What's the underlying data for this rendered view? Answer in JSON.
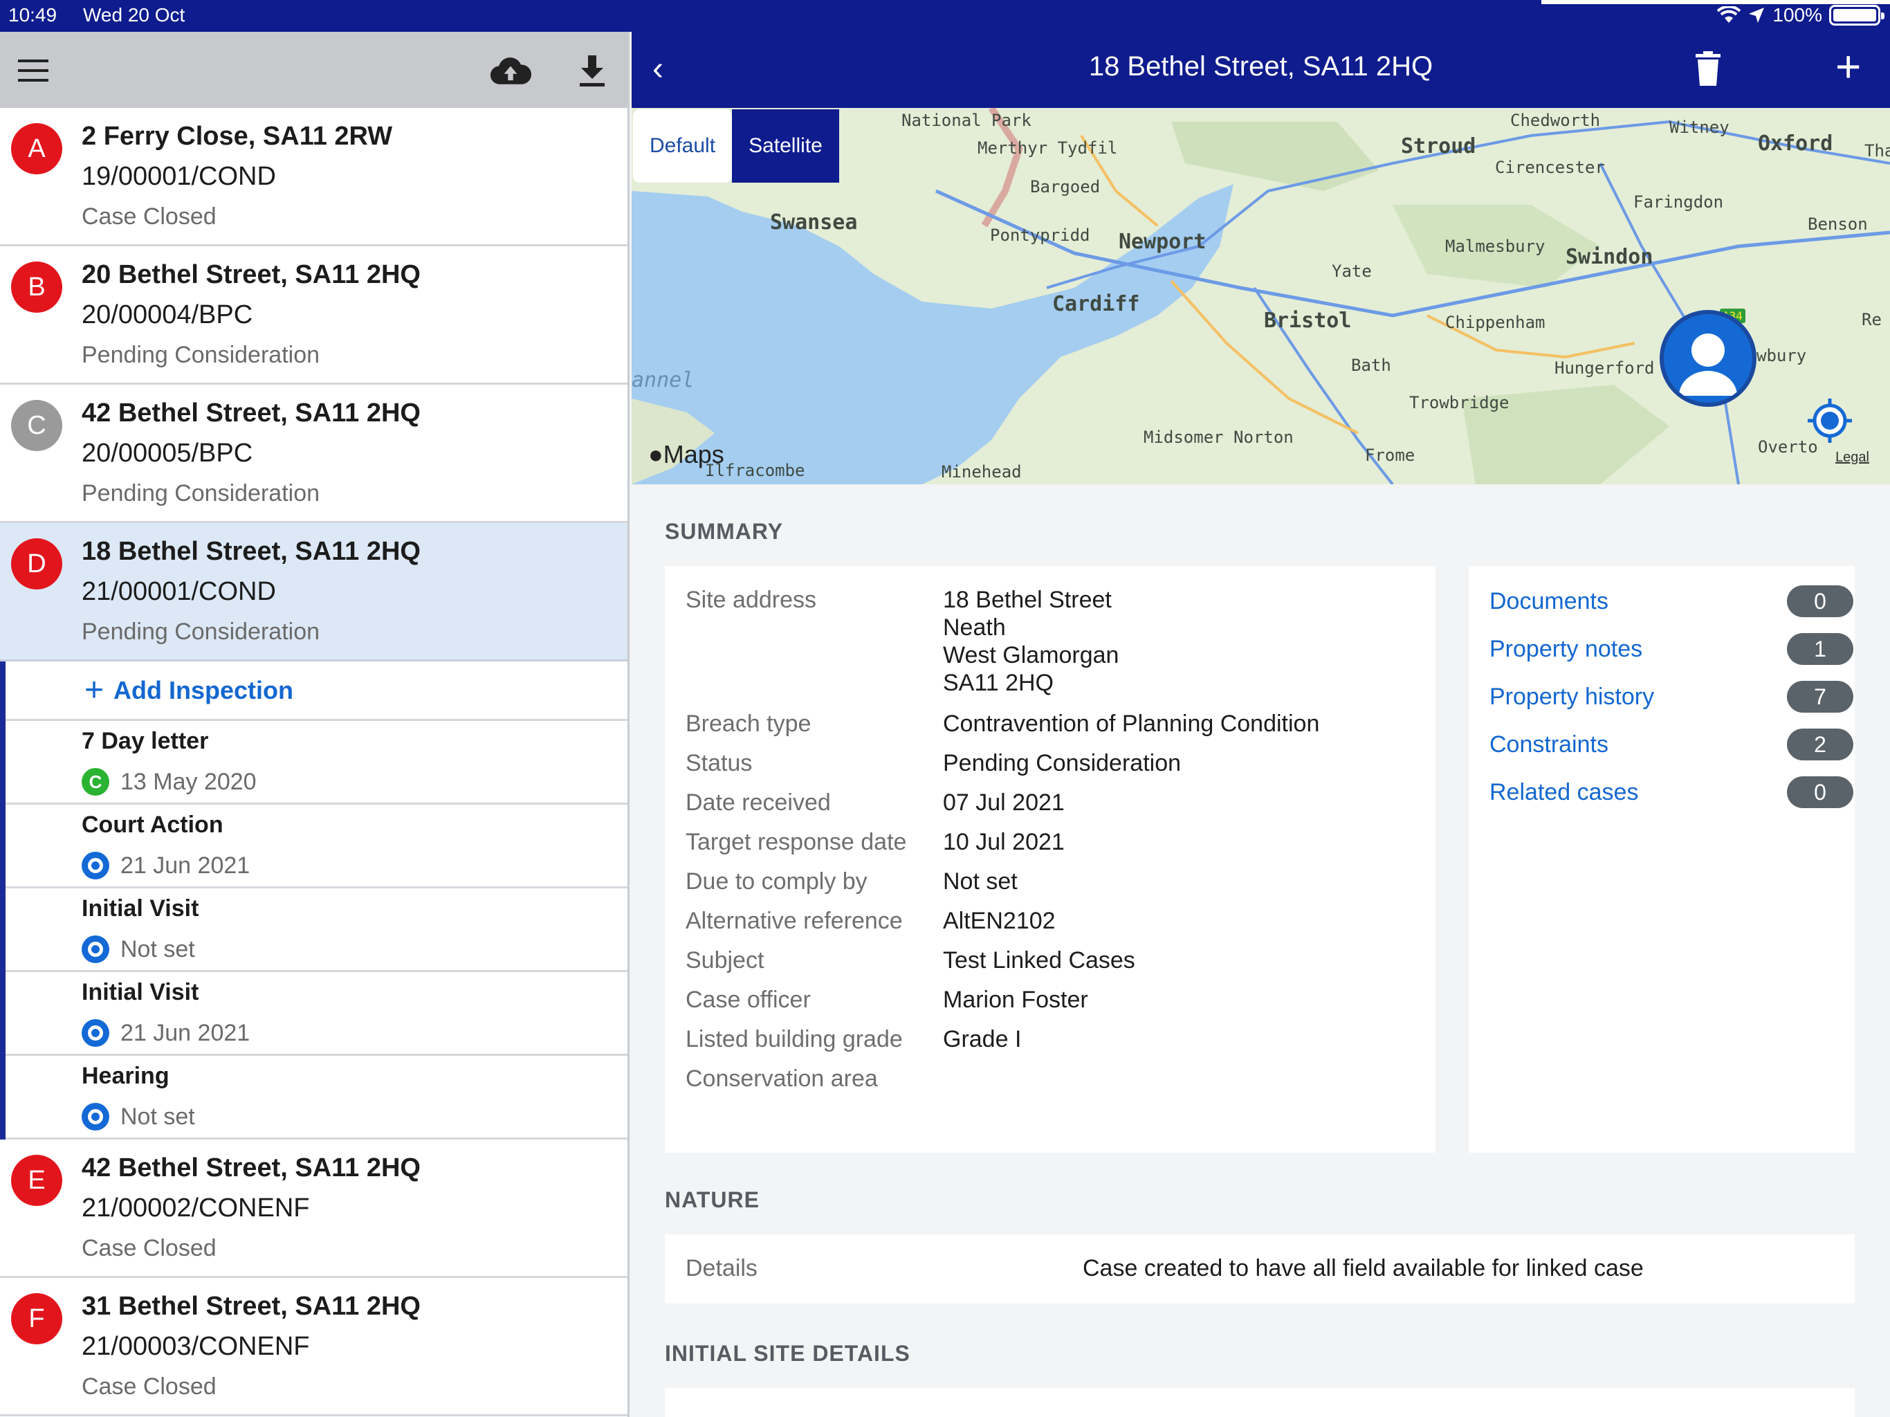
{
  "statusbar": {
    "time": "10:49",
    "date": "Wed 20 Oct",
    "battery": "100%"
  },
  "colors": {
    "nav_bg": "#0f1c8e",
    "link": "#1367d0",
    "badge_red": "#e3151c",
    "badge_grey": "#9a9a9a",
    "selected_row": "#dce8f6"
  },
  "left_toolbar": {
    "menu_icon": "menu-icon",
    "upload_icon": "cloud-upload-icon",
    "download_icon": "download-icon"
  },
  "cases": [
    {
      "letter": "A",
      "title": "2 Ferry Close, SA11 2RW",
      "ref": "19/00001/COND",
      "status": "Case Closed"
    },
    {
      "letter": "B",
      "title": "20 Bethel Street, SA11 2HQ",
      "ref": "20/00004/BPC",
      "status": "Pending Consideration"
    },
    {
      "letter": "C",
      "title": "42 Bethel Street, SA11 2HQ",
      "ref": "20/00005/BPC",
      "status": "Pending Consideration"
    },
    {
      "letter": "D",
      "title": "18 Bethel Street, SA11 2HQ",
      "ref": "21/00001/COND",
      "status": "Pending Consideration"
    },
    {
      "letter": "E",
      "title": "42 Bethel Street, SA11 2HQ",
      "ref": "21/00002/CONENF",
      "status": "Case Closed"
    },
    {
      "letter": "F",
      "title": "31 Bethel Street, SA11 2HQ",
      "ref": "21/00003/CONENF",
      "status": "Case Closed"
    }
  ],
  "add_inspection": {
    "label": "Add Inspection"
  },
  "inspections": [
    {
      "title": "7 Day letter",
      "date": "13 May 2020",
      "icon_letter": "C"
    },
    {
      "title": "Court Action",
      "date": "21 Jun 2021"
    },
    {
      "title": "Initial Visit",
      "date": "Not set"
    },
    {
      "title": "Initial Visit",
      "date": "21 Jun 2021"
    },
    {
      "title": "Hearing",
      "date": "Not set"
    }
  ],
  "navbar": {
    "title": "18 Bethel Street, SA11 2HQ",
    "back": "‹",
    "add": "+"
  },
  "map": {
    "tabs": {
      "default": "Default",
      "satellite": "Satellite"
    },
    "logo": "Maps",
    "legal": "Legal",
    "labels": {
      "national_park": "National Park",
      "chedworth": "Chedworth",
      "witney": "Witney",
      "oxford": "Oxford",
      "tha": "Tha",
      "merthyr": "Merthyr Tydfil",
      "stroud": "Stroud",
      "cirencester": "Cirencester",
      "bargoed": "Bargoed",
      "faringdon": "Faringdon",
      "swansea": "Swansea",
      "benson": "Benson",
      "pontypridd": "Pontypridd",
      "newport": "Newport",
      "malmesbury": "Malmesbury",
      "swindon": "Swindon",
      "yate": "Yate",
      "cardiff": "Cardiff",
      "bristol": "Bristol",
      "chippenham": "Chippenham",
      "re": "Re",
      "wbury": "wbury",
      "bath": "Bath",
      "hungerford": "Hungerford",
      "annel": "annel",
      "trowbridge": "Trowbridge",
      "midsomer": "Midsomer Norton",
      "frome": "Frome",
      "ilfracombe": "Ilfracombe",
      "minehead": "Minehead",
      "overton": "Overto",
      "road_sign": "A34"
    }
  },
  "summary": {
    "heading": "SUMMARY",
    "rows": [
      {
        "label": "Site address",
        "value": "18 Bethel Street"
      },
      {
        "label": "",
        "value": "Neath"
      },
      {
        "label": "",
        "value": "West Glamorgan"
      },
      {
        "label": "",
        "value": "SA11 2HQ"
      },
      {
        "label": "Breach type",
        "value": "Contravention of Planning Condition"
      },
      {
        "label": "Status",
        "value": "Pending Consideration"
      },
      {
        "label": "Date received",
        "value": "07 Jul 2021"
      },
      {
        "label": "Target response date",
        "value": "10 Jul 2021"
      },
      {
        "label": "Due to comply by",
        "value": "Not set"
      },
      {
        "label": "Alternative reference",
        "value": "AltEN2102"
      },
      {
        "label": "Subject",
        "value": "Test Linked Cases"
      },
      {
        "label": "Case officer",
        "value": "Marion Foster"
      },
      {
        "label": "Listed building grade",
        "value": "Grade I"
      },
      {
        "label": "Conservation area",
        "value": ""
      }
    ],
    "links": [
      {
        "label": "Documents",
        "count": "0"
      },
      {
        "label": "Property notes",
        "count": "1"
      },
      {
        "label": "Property history",
        "count": "7"
      },
      {
        "label": "Constraints",
        "count": "2"
      },
      {
        "label": "Related cases",
        "count": "0"
      }
    ]
  },
  "nature": {
    "heading": "NATURE",
    "label": "Details",
    "value": "Case created to have all field available for linked case"
  },
  "initial_site": {
    "heading": "INITIAL SITE DETAILS"
  }
}
